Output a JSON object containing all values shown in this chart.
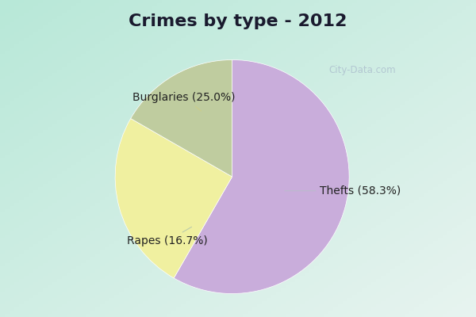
{
  "title": "Crimes by type - 2012",
  "slices": [
    {
      "label": "Thefts (58.3%)",
      "value": 58.3,
      "color": "#C9ADDB"
    },
    {
      "label": "Burglaries (25.0%)",
      "value": 25.0,
      "color": "#F0F0A0"
    },
    {
      "label": "Rapes (16.7%)",
      "value": 16.7,
      "color": "#BFCC9F"
    }
  ],
  "bg_color_cyan": "#00E5FF",
  "bg_grad_tl": "#B8E8D8",
  "bg_grad_br": "#E8F4F0",
  "title_fontsize": 16,
  "label_fontsize": 10,
  "watermark": "City-Data.com",
  "startangle": 90,
  "title_color": "#1a1a2e"
}
